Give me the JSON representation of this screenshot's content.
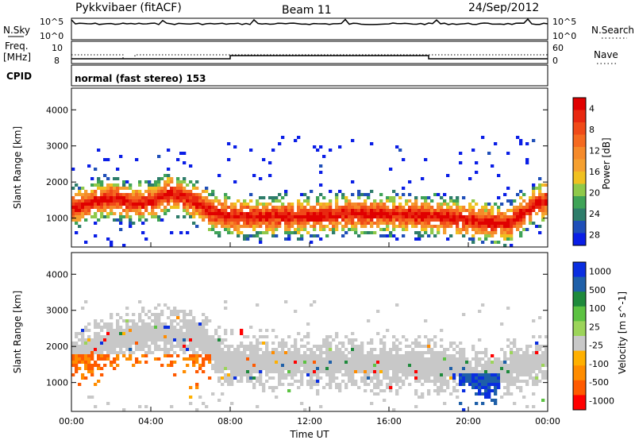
{
  "header": {
    "station": "Pykkvibaer (fitACF)",
    "beam": "Beam 11",
    "date": "24/Sep/2012"
  },
  "labels": {
    "nsky": "N.Sky",
    "nsearch": "N.Search",
    "freq": "Freq.",
    "mhz": "[MHz]",
    "nave": "Nave",
    "cpid": "CPID",
    "cpid_text": "normal (fast stereo) 153",
    "nsky_ticks": [
      "10^5",
      "10^0"
    ],
    "nsearch_ticks": [
      "10^5",
      "10^0"
    ],
    "freq_ticks": [
      "10",
      "8"
    ],
    "nave_ticks": [
      "60",
      "0"
    ]
  },
  "colors": {
    "power": [
      "#0a1ee6",
      "#1f4fb8",
      "#2e7d6a",
      "#3fa357",
      "#8fc94a",
      "#f0c020",
      "#f5a030",
      "#f58a2a",
      "#f56a20",
      "#f04a18",
      "#e82810",
      "#e00000"
    ],
    "velocity": [
      "#ff0000",
      "#ff5a00",
      "#ff8c00",
      "#ffb000",
      "#c8c8c8",
      "#9cd45a",
      "#5cc242",
      "#1e8a3c",
      "#1e5fa8",
      "#0a2ee0"
    ]
  },
  "chart_data": [
    {
      "type": "heatmap",
      "title": "",
      "xlabel": "",
      "ylabel": "Slant Range [km]",
      "x_ticks": [
        "00:00",
        "04:00",
        "08:00",
        "12:00",
        "16:00",
        "20:00",
        "00:00"
      ],
      "y_ticks": [
        "1000",
        "2000",
        "3000",
        "4000"
      ],
      "ylim": [
        200,
        4600
      ],
      "colorbar": {
        "label": "Power [dB]",
        "ticks": [
          "4",
          "8",
          "12",
          "16",
          "20",
          "24",
          "28"
        ],
        "range": [
          0,
          30
        ]
      },
      "series": [
        {
          "name": "",
          "x": [
            0.0,
            1.0,
            2.0,
            3.0,
            4.0,
            5.0,
            6.0,
            7.0,
            8.0,
            10.0,
            12.0,
            14.0,
            16.0,
            18.0,
            19.0,
            20.0,
            21.0,
            22.0,
            23.0,
            24.0
          ],
          "values": [
            1300,
            1500,
            1600,
            1450,
            1500,
            1750,
            1550,
            1200,
            1100,
            1100,
            1100,
            1150,
            1150,
            1100,
            1050,
            1000,
            900,
            900,
            1300,
            1600
          ]
        }
      ]
    },
    {
      "type": "heatmap",
      "title": "",
      "xlabel": "Time UT",
      "ylabel": "Slant Range [km]",
      "x_ticks": [
        "00:00",
        "04:00",
        "08:00",
        "12:00",
        "16:00",
        "20:00",
        "00:00"
      ],
      "y_ticks": [
        "1000",
        "2000",
        "3000",
        "4000"
      ],
      "ylim": [
        200,
        4600
      ],
      "colorbar": {
        "label": "Velocity [m s^-1]",
        "ticks": [
          "1000",
          "500",
          "100",
          "25",
          "-25",
          "-100",
          "-500",
          "-1000"
        ],
        "range": [
          -1200,
          1200
        ]
      },
      "series": [
        {
          "name": "",
          "x": [
            0.0,
            2.0,
            4.0,
            6.0,
            8.0,
            12.0,
            16.0,
            18.0,
            20.0,
            21.0,
            22.0,
            24.0
          ],
          "values": [
            1800,
            2200,
            2400,
            2300,
            1600,
            1600,
            1550,
            1500,
            1300,
            1200,
            1400,
            1700
          ]
        }
      ]
    }
  ]
}
